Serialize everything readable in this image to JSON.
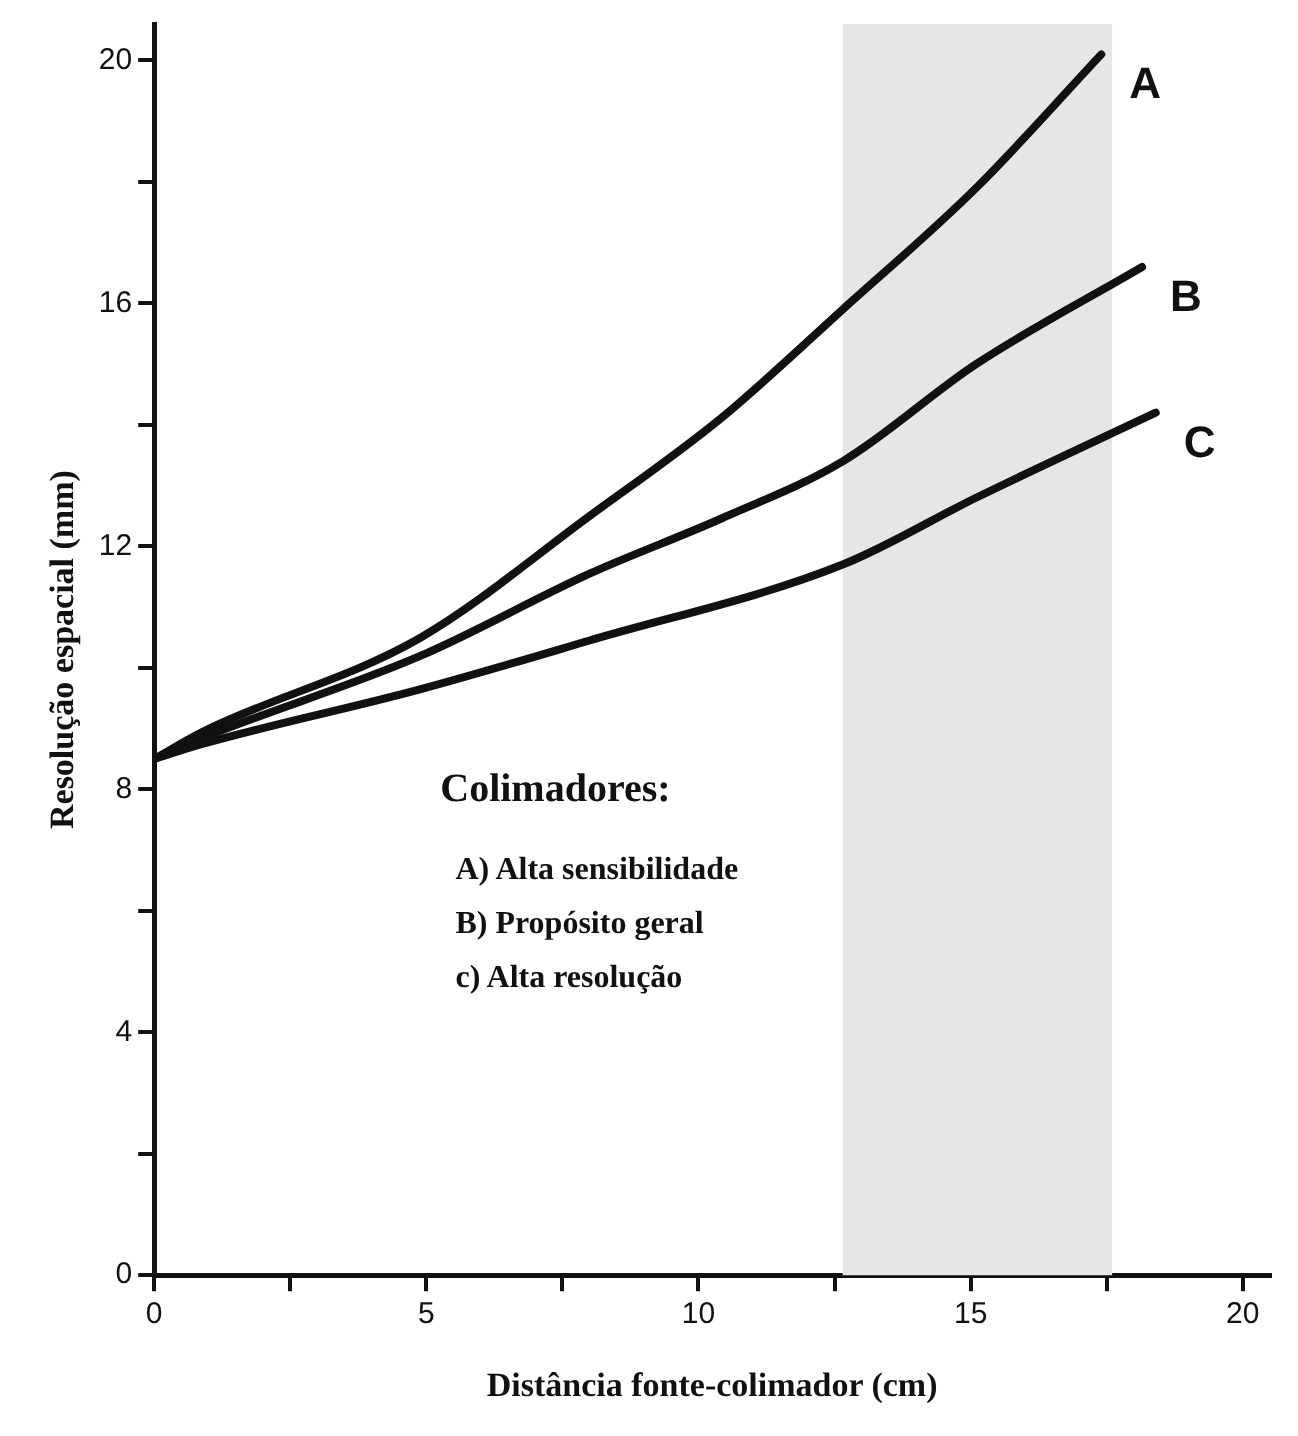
{
  "chart_data": {
    "type": "line",
    "xlabel": "Distância fonte-colimador (cm)",
    "ylabel": "Resolução espacial (mm)",
    "xlim": [
      0,
      20.5
    ],
    "ylim": [
      0,
      20.6
    ],
    "xticks": [
      0,
      {
        "value": 2.5,
        "label": null
      },
      5,
      {
        "value": 7.5,
        "label": null
      },
      10,
      {
        "value": 12.5,
        "label": null
      },
      15,
      {
        "value": 17.5,
        "label": null
      },
      20
    ],
    "yticks": [
      0,
      {
        "value": 2,
        "label": null
      },
      4,
      {
        "value": 6,
        "label": null
      },
      8,
      {
        "value": 10,
        "label": null
      },
      12,
      {
        "value": 14,
        "label": null
      },
      16,
      {
        "value": 18,
        "label": null
      },
      20
    ],
    "grid": false,
    "legend": false,
    "marker": "none",
    "line_style": "solid",
    "bands": [
      {
        "axis": "x",
        "from": 12.65,
        "to": 17.6,
        "color": "#e6e6e6"
      }
    ],
    "series": [
      {
        "name": "A",
        "color": "#111111",
        "x": [
          0,
          0.9,
          4.9,
          8,
          10.4,
          12.65,
          15.1,
          17.4
        ],
        "values": [
          8.5,
          8.95,
          10.5,
          12.5,
          14.1,
          15.9,
          17.9,
          20.1
        ]
      },
      {
        "name": "B",
        "color": "#111111",
        "x": [
          0,
          0.9,
          4.9,
          8,
          10.4,
          12.65,
          15.1,
          18.15
        ],
        "values": [
          8.5,
          8.85,
          10.2,
          11.55,
          12.45,
          13.4,
          15.0,
          16.6
        ]
      },
      {
        "name": "C",
        "color": "#111111",
        "x": [
          0,
          0.9,
          4.9,
          8,
          12.65,
          15.1,
          18.4
        ],
        "values": [
          8.5,
          8.75,
          9.65,
          10.45,
          11.7,
          12.8,
          14.2
        ]
      }
    ],
    "annotations": [
      "Colimadores:",
      "A) Alta sensibilidade",
      "B) Propósito geral",
      "c) Alta resolução"
    ]
  }
}
